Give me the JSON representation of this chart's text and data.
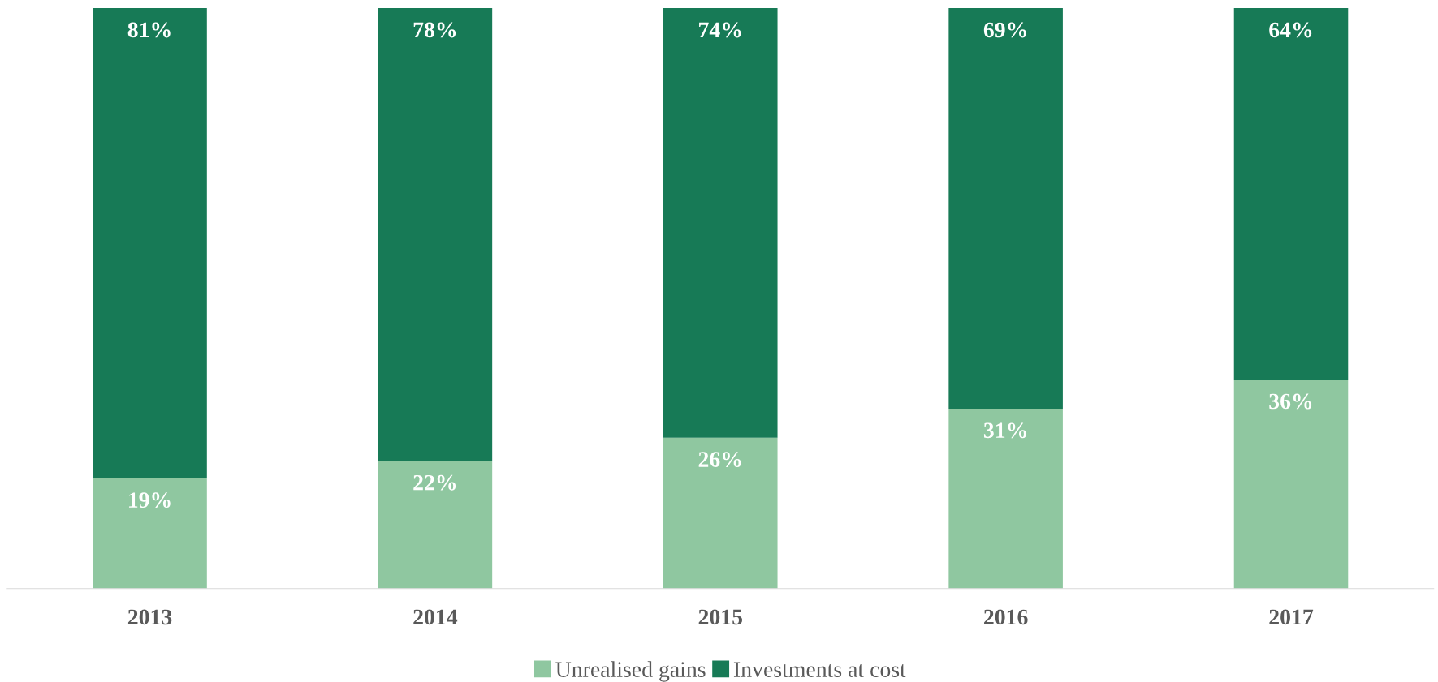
{
  "chart_data": {
    "type": "bar",
    "stacked": true,
    "categories": [
      "2013",
      "2014",
      "2015",
      "2016",
      "2017"
    ],
    "series": [
      {
        "name": "Unrealised gains",
        "color": "#8fc7a0",
        "values": [
          19,
          22,
          26,
          31,
          36
        ],
        "value_labels": [
          "19%",
          "22%",
          "26%",
          "31%",
          "36%"
        ]
      },
      {
        "name": "Investments at cost",
        "color": "#177a56",
        "values": [
          81,
          78,
          74,
          69,
          64
        ],
        "value_labels": [
          "81%",
          "78%",
          "74%",
          "69%",
          "64%"
        ]
      }
    ],
    "tick_labels": "x",
    "legend": "bottom"
  }
}
